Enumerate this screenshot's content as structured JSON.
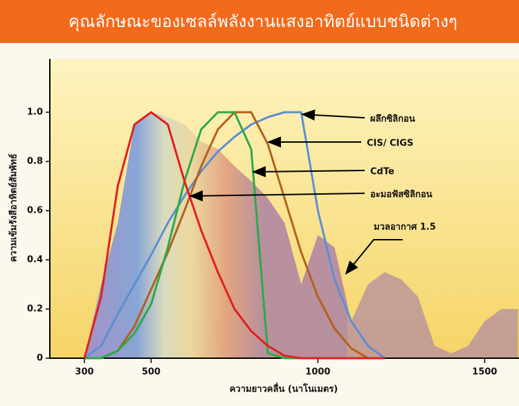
{
  "chart_data": {
    "type": "line",
    "title": "คุณลักษณะของเซลล์พลังงานแสงอาทิตย์แบบชนิดต่างๆ",
    "xlabel": "ความยาวคลื่น (นาโนเมตร)",
    "ylabel": "ความเข้มรังสีอาทิตย์สัมพัทธ์",
    "x": [
      300,
      350,
      400,
      450,
      500,
      550,
      600,
      650,
      700,
      750,
      800,
      850,
      900,
      950,
      1000,
      1050,
      1100,
      1150,
      1200
    ],
    "series": [
      {
        "name": "ผลึกซิลิกอน",
        "color": "#5b8fd6",
        "values": [
          0,
          0.05,
          0.18,
          0.3,
          0.42,
          0.55,
          0.66,
          0.76,
          0.84,
          0.9,
          0.95,
          0.98,
          1.0,
          1.0,
          0.6,
          0.32,
          0.15,
          0.05,
          0
        ]
      },
      {
        "name": "CIS/ CIGS",
        "color": "#b2611a",
        "values": [
          0,
          0,
          0.03,
          0.13,
          0.28,
          0.43,
          0.6,
          0.78,
          0.93,
          1.0,
          1.0,
          0.87,
          0.65,
          0.43,
          0.25,
          0.12,
          0.04,
          0,
          0
        ]
      },
      {
        "name": "CdTe",
        "color": "#2ea84a",
        "values": [
          0,
          0,
          0.03,
          0.1,
          0.22,
          0.45,
          0.72,
          0.93,
          1.0,
          1.0,
          0.85,
          0.02,
          0,
          0,
          0,
          0,
          0,
          0,
          0
        ]
      },
      {
        "name": "อะมอฟัสซิลิกอน",
        "color": "#e0201c",
        "values": [
          0,
          0.25,
          0.7,
          0.95,
          1.0,
          0.95,
          0.72,
          0.52,
          0.35,
          0.2,
          0.11,
          0.05,
          0.01,
          0,
          0,
          0,
          0,
          0,
          0
        ]
      }
    ],
    "spectrum": {
      "name": "มวลอากาศ 1.5",
      "color": "#b48ca0",
      "x": [
        300,
        350,
        400,
        450,
        500,
        550,
        600,
        650,
        700,
        750,
        800,
        850,
        900,
        950,
        1000,
        1050,
        1100,
        1150,
        1200,
        1250,
        1300,
        1350,
        1400,
        1450,
        1500,
        1550,
        1600
      ],
      "values": [
        0,
        0.3,
        0.55,
        0.95,
        1.0,
        0.98,
        0.95,
        0.88,
        0.85,
        0.78,
        0.72,
        0.65,
        0.55,
        0.3,
        0.5,
        0.45,
        0.15,
        0.3,
        0.35,
        0.32,
        0.25,
        0.05,
        0.02,
        0.05,
        0.15,
        0.2,
        0.2
      ]
    },
    "xlim": [
      200,
      1600
    ],
    "ylim": [
      0,
      1.2
    ],
    "xticks": [
      300,
      500,
      1000,
      1500
    ],
    "yticks": [
      0,
      {
        "value": 0.2,
        "label": "0.2"
      },
      {
        "value": 0.4,
        "label": "0.4"
      },
      {
        "value": 0.6,
        "label": "0.6"
      },
      {
        "value": 0.8,
        "label": "0.8"
      },
      {
        "value": 1,
        "label": "1.0"
      }
    ]
  }
}
